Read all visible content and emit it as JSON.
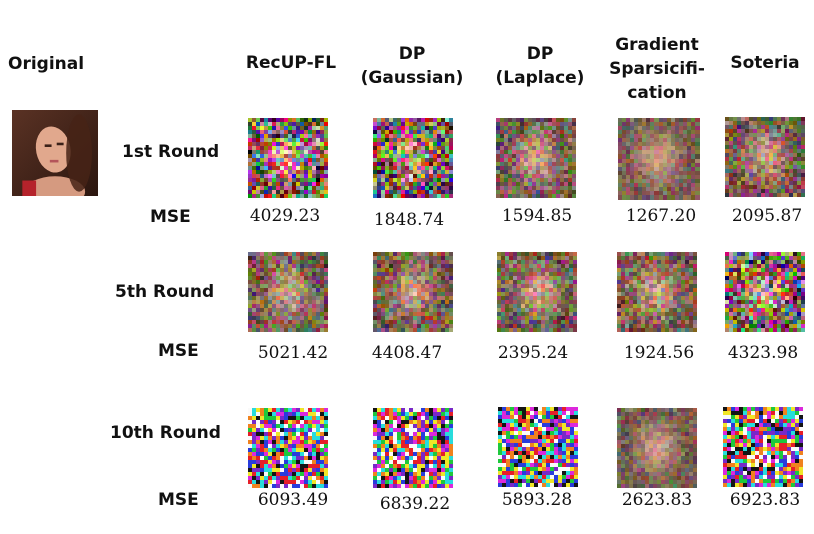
{
  "original_label": "Original",
  "columns": [
    {
      "key": "recup",
      "lines": [
        "RecUP-FL"
      ]
    },
    {
      "key": "dp_gaussian",
      "lines": [
        "DP",
        "(Gaussian)"
      ]
    },
    {
      "key": "dp_laplace",
      "lines": [
        "DP",
        "(Laplace)"
      ]
    },
    {
      "key": "grad_sparse",
      "lines": [
        "Gradient",
        "Sparsicifi-",
        "cation"
      ]
    },
    {
      "key": "soteria",
      "lines": [
        "Soteria"
      ]
    }
  ],
  "rows": [
    {
      "label": "1st Round",
      "mse_label": "MSE",
      "mse": [
        "4029.23",
        "1848.74",
        "1594.85",
        "1267.20",
        "2095.87"
      ]
    },
    {
      "label": "5th Round",
      "mse_label": "MSE",
      "mse": [
        "5021.42",
        "4408.47",
        "2395.24",
        "1924.56",
        "4323.98"
      ]
    },
    {
      "label": "10th Round",
      "mse_label": "MSE",
      "mse": [
        "6093.49",
        "6839.22",
        "5893.28",
        "2623.83",
        "6923.83"
      ]
    }
  ],
  "images": {
    "original": "portrait-photo",
    "reconstructions": [
      [
        "noisy-face-reconstruction",
        "noisy-face-reconstruction",
        "blurry-face-reconstruction",
        "face-reconstruction",
        "blurry-face-reconstruction"
      ],
      [
        "blurry-face-reconstruction",
        "blurry-face-reconstruction",
        "blurry-face-reconstruction",
        "blurry-face-reconstruction",
        "noisy-face-reconstruction"
      ],
      [
        "random-noise",
        "random-noise",
        "random-noise",
        "face-reconstruction",
        "random-noise"
      ]
    ]
  }
}
